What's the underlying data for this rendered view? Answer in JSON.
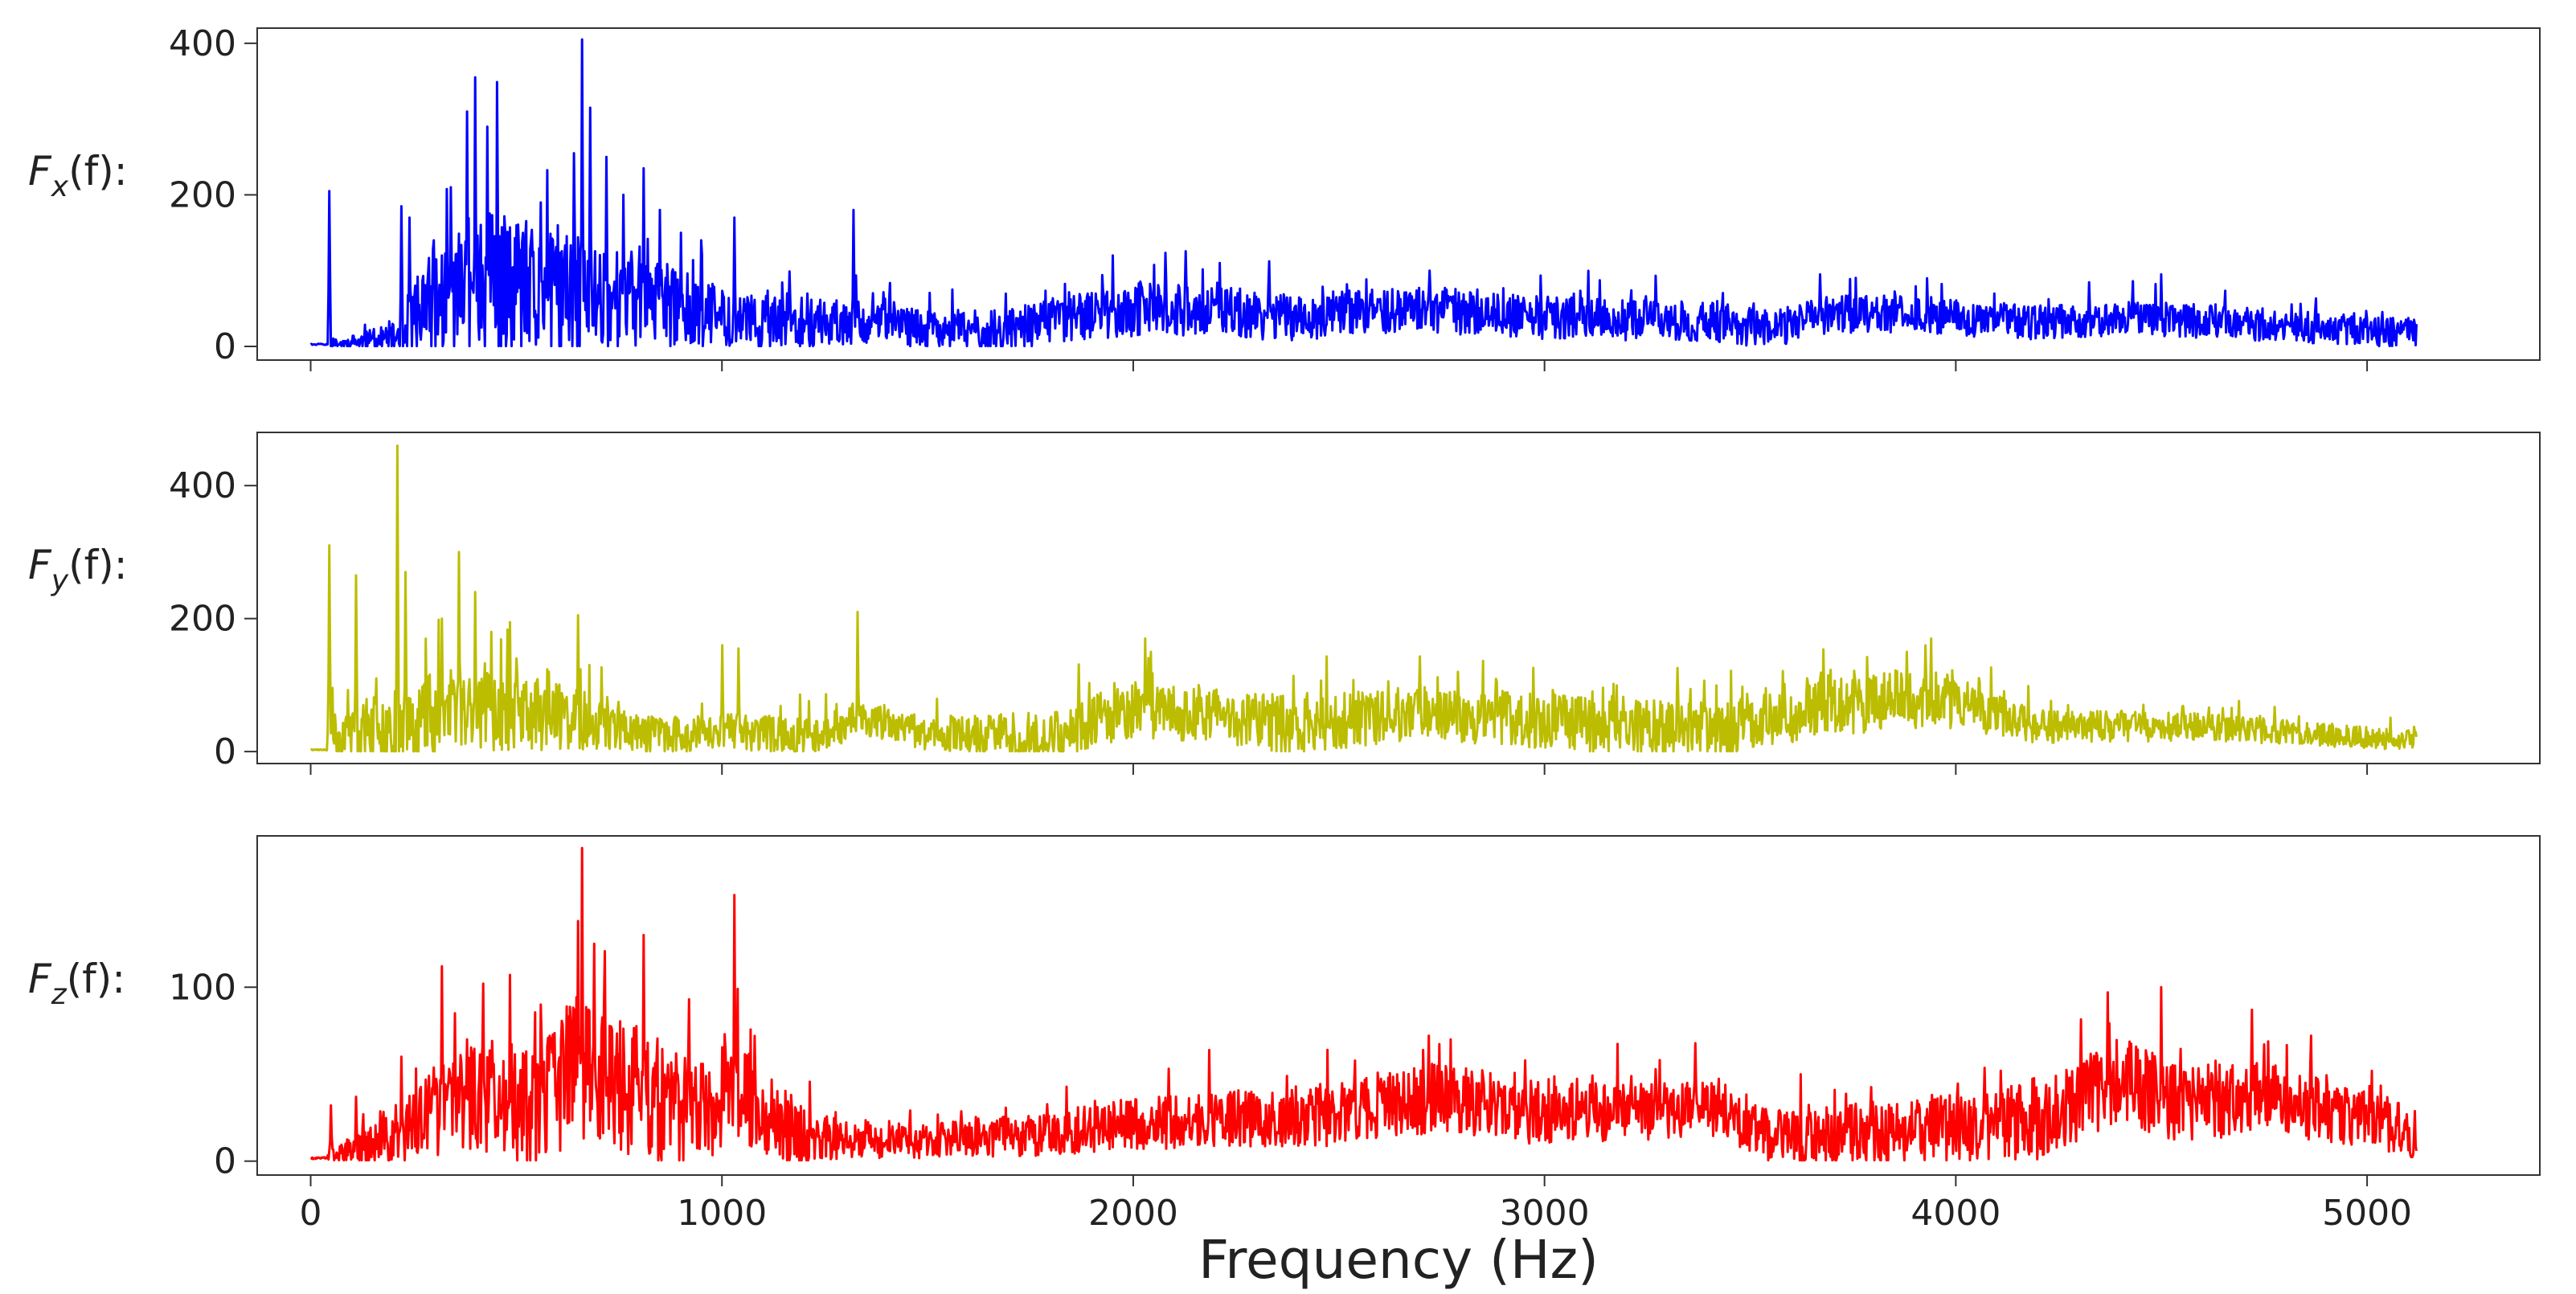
{
  "chart_data": {
    "type": "line",
    "xlabel": "Frequency (Hz)",
    "xlim": [
      -130,
      5420
    ],
    "x_ticks": [
      0,
      1000,
      2000,
      3000,
      4000,
      5000
    ],
    "x_tick_labels": [
      "0",
      "1000",
      "2000",
      "3000",
      "4000",
      "5000"
    ],
    "x_range": [
      0,
      5120
    ],
    "panels": [
      {
        "name": "Fx",
        "ylabel_main": "F",
        "ylabel_sub": "x",
        "ylabel_rest": "(f):",
        "color": "#0000ff",
        "ylim": [
          -18,
          420
        ],
        "y_ticks": [
          0,
          200,
          400
        ],
        "y_tick_labels": [
          "0",
          "200",
          "400"
        ],
        "seed": 11,
        "baseline": [
          [
            0,
            2
          ],
          [
            40,
            2
          ],
          [
            200,
            8
          ],
          [
            280,
            40
          ],
          [
            400,
            60
          ],
          [
            550,
            50
          ],
          [
            700,
            60
          ],
          [
            900,
            45
          ],
          [
            1100,
            25
          ],
          [
            1300,
            30
          ],
          [
            1500,
            20
          ],
          [
            1700,
            18
          ],
          [
            1850,
            35
          ],
          [
            2000,
            45
          ],
          [
            2200,
            42
          ],
          [
            2400,
            35
          ],
          [
            2700,
            45
          ],
          [
            3000,
            35
          ],
          [
            3400,
            30
          ],
          [
            3550,
            20
          ],
          [
            3700,
            40
          ],
          [
            3900,
            40
          ],
          [
            4200,
            28
          ],
          [
            4450,
            35
          ],
          [
            4700,
            28
          ],
          [
            5120,
            15
          ]
        ],
        "amp": [
          [
            0,
            0
          ],
          [
            200,
            20
          ],
          [
            300,
            80
          ],
          [
            450,
            120
          ],
          [
            600,
            90
          ],
          [
            750,
            70
          ],
          [
            1000,
            40
          ],
          [
            1300,
            30
          ],
          [
            1500,
            25
          ],
          [
            2000,
            35
          ],
          [
            3000,
            28
          ],
          [
            5120,
            20
          ]
        ],
        "peaks": [
          [
            45,
            205
          ],
          [
            220,
            185
          ],
          [
            240,
            170
          ],
          [
            300,
            140
          ],
          [
            340,
            210
          ],
          [
            380,
            310
          ],
          [
            400,
            355
          ],
          [
            430,
            290
          ],
          [
            500,
            160
          ],
          [
            560,
            190
          ],
          [
            600,
            160
          ],
          [
            640,
            255
          ],
          [
            660,
            405
          ],
          [
            680,
            315
          ],
          [
            720,
            250
          ],
          [
            760,
            200
          ],
          [
            810,
            235
          ],
          [
            850,
            180
          ],
          [
            900,
            150
          ],
          [
            950,
            140
          ],
          [
            1030,
            170
          ],
          [
            1320,
            180
          ],
          [
            1950,
            120
          ],
          [
            2210,
            110
          ],
          [
            2720,
            100
          ],
          [
            3670,
            95
          ],
          [
            3930,
            90
          ],
          [
            4500,
            95
          ]
        ]
      },
      {
        "name": "Fy",
        "ylabel_main": "F",
        "ylabel_sub": "y",
        "ylabel_rest": "(f):",
        "color": "#bcbd00",
        "ylim": [
          -18,
          480
        ],
        "y_ticks": [
          0,
          200,
          400
        ],
        "y_tick_labels": [
          "0",
          "200",
          "400"
        ],
        "seed": 23,
        "baseline": [
          [
            0,
            2
          ],
          [
            40,
            2
          ],
          [
            50,
            20
          ],
          [
            200,
            40
          ],
          [
            400,
            60
          ],
          [
            700,
            40
          ],
          [
            800,
            25
          ],
          [
            900,
            20
          ],
          [
            1000,
            30
          ],
          [
            1200,
            20
          ],
          [
            1350,
            45
          ],
          [
            1500,
            25
          ],
          [
            1800,
            20
          ],
          [
            2000,
            60
          ],
          [
            2200,
            50
          ],
          [
            2400,
            35
          ],
          [
            2700,
            55
          ],
          [
            3000,
            40
          ],
          [
            3400,
            30
          ],
          [
            3550,
            45
          ],
          [
            3700,
            70
          ],
          [
            3950,
            75
          ],
          [
            4200,
            35
          ],
          [
            4600,
            35
          ],
          [
            5120,
            15
          ]
        ],
        "amp": [
          [
            0,
            0
          ],
          [
            50,
            30
          ],
          [
            300,
            70
          ],
          [
            500,
            60
          ],
          [
            800,
            30
          ],
          [
            1500,
            25
          ],
          [
            2000,
            45
          ],
          [
            2700,
            40
          ],
          [
            3800,
            50
          ],
          [
            4200,
            25
          ],
          [
            5120,
            15
          ]
        ],
        "peaks": [
          [
            45,
            310
          ],
          [
            110,
            265
          ],
          [
            210,
            460
          ],
          [
            230,
            270
          ],
          [
            320,
            200
          ],
          [
            360,
            300
          ],
          [
            400,
            240
          ],
          [
            440,
            180
          ],
          [
            500,
            140
          ],
          [
            580,
            120
          ],
          [
            650,
            205
          ],
          [
            1000,
            160
          ],
          [
            1040,
            155
          ],
          [
            1330,
            210
          ],
          [
            2030,
            170
          ],
          [
            3940,
            170
          ],
          [
            3880,
            150
          ]
        ]
      },
      {
        "name": "Fz",
        "ylabel_main": "F",
        "ylabel_sub": "z",
        "ylabel_rest": "(f):",
        "color": "#ff0000",
        "ylim": [
          -8,
          187
        ],
        "y_ticks": [
          0,
          100
        ],
        "y_tick_labels": [
          "0",
          "100"
        ],
        "seed": 37,
        "baseline": [
          [
            0,
            1
          ],
          [
            40,
            2
          ],
          [
            100,
            5
          ],
          [
            200,
            10
          ],
          [
            300,
            25
          ],
          [
            400,
            35
          ],
          [
            550,
            25
          ],
          [
            650,
            55
          ],
          [
            700,
            45
          ],
          [
            800,
            35
          ],
          [
            900,
            25
          ],
          [
            1050,
            35
          ],
          [
            1200,
            12
          ],
          [
            1500,
            10
          ],
          [
            1800,
            15
          ],
          [
            2000,
            20
          ],
          [
            2500,
            25
          ],
          [
            2750,
            35
          ],
          [
            3000,
            25
          ],
          [
            3400,
            28
          ],
          [
            3550,
            12
          ],
          [
            3800,
            15
          ],
          [
            4200,
            20
          ],
          [
            4400,
            45
          ],
          [
            4550,
            30
          ],
          [
            4750,
            35
          ],
          [
            5120,
            15
          ]
        ],
        "amp": [
          [
            0,
            0
          ],
          [
            300,
            25
          ],
          [
            650,
            45
          ],
          [
            1100,
            25
          ],
          [
            1300,
            10
          ],
          [
            1500,
            10
          ],
          [
            2000,
            15
          ],
          [
            2700,
            20
          ],
          [
            3500,
            15
          ],
          [
            4400,
            25
          ],
          [
            5120,
            15
          ]
        ],
        "peaks": [
          [
            50,
            32
          ],
          [
            110,
            37
          ],
          [
            220,
            60
          ],
          [
            320,
            112
          ],
          [
            350,
            85
          ],
          [
            380,
            70
          ],
          [
            420,
            102
          ],
          [
            560,
            90
          ],
          [
            650,
            138
          ],
          [
            660,
            180
          ],
          [
            690,
            125
          ],
          [
            810,
            130
          ],
          [
            920,
            93
          ],
          [
            1030,
            153
          ],
          [
            1080,
            72
          ],
          [
            4370,
            97
          ],
          [
            4500,
            100
          ],
          [
            4720,
            87
          ]
        ]
      }
    ]
  }
}
